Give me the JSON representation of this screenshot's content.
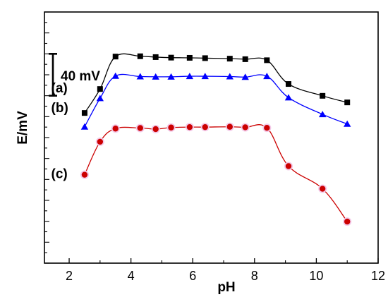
{
  "chart_data": {
    "type": "line",
    "xlabel": "pH",
    "ylabel": "E/mV",
    "xlim": [
      1.2,
      12
    ],
    "xticks": [
      "2",
      "4",
      "6",
      "8",
      "10",
      "12"
    ],
    "ylim": [
      -200,
      40
    ],
    "y_tick_labels_shown": false,
    "grid": false,
    "legend": "none",
    "scale_bar": {
      "label": "40 mV",
      "value": 40,
      "y_from": -40,
      "y_to": 0
    },
    "series": [
      {
        "label": "(a)",
        "marker": "square",
        "color": "#000000",
        "line_color": "#000000",
        "label_at": [
          1.6,
          -32
        ],
        "x": [
          2.5,
          3.0,
          3.5,
          4.3,
          4.8,
          5.3,
          5.9,
          6.4,
          7.2,
          7.7,
          8.4,
          9.1,
          10.2,
          11.0
        ],
        "y": [
          -56.5,
          -33.6,
          -2.6,
          -2.3,
          -3.1,
          -3.6,
          -3.8,
          -4.1,
          -4.6,
          -5.1,
          -6.1,
          -28.8,
          -40.1,
          -46.4
        ]
      },
      {
        "label": "(b)",
        "marker": "triangle",
        "color": "#0000ff",
        "line_color": "#0000ff",
        "label_at": [
          1.6,
          -51
        ],
        "x": [
          2.5,
          3.0,
          3.5,
          4.3,
          4.8,
          5.3,
          5.9,
          6.4,
          7.2,
          7.7,
          8.4,
          9.1,
          10.2,
          11.0
        ],
        "y": [
          -69.7,
          -42.5,
          -21.2,
          -21.7,
          -21.9,
          -21.9,
          -21.4,
          -21.4,
          -21.7,
          -22.2,
          -21.4,
          -41.8,
          -57.8,
          -67.0
        ]
      },
      {
        "label": "(c)",
        "marker": "circle",
        "color": "#cc0000",
        "line_color": "#cc0000",
        "label_at": [
          1.6,
          -114
        ],
        "x": [
          2.5,
          3.0,
          3.5,
          4.3,
          4.8,
          5.3,
          5.9,
          6.4,
          7.2,
          7.7,
          8.4,
          9.1,
          10.2,
          11.0
        ],
        "y": [
          -115.5,
          -84.0,
          -71.4,
          -70.9,
          -71.9,
          -70.4,
          -70.0,
          -70.0,
          -69.7,
          -70.2,
          -70.7,
          -107.3,
          -128.9,
          -160.3
        ]
      }
    ]
  }
}
